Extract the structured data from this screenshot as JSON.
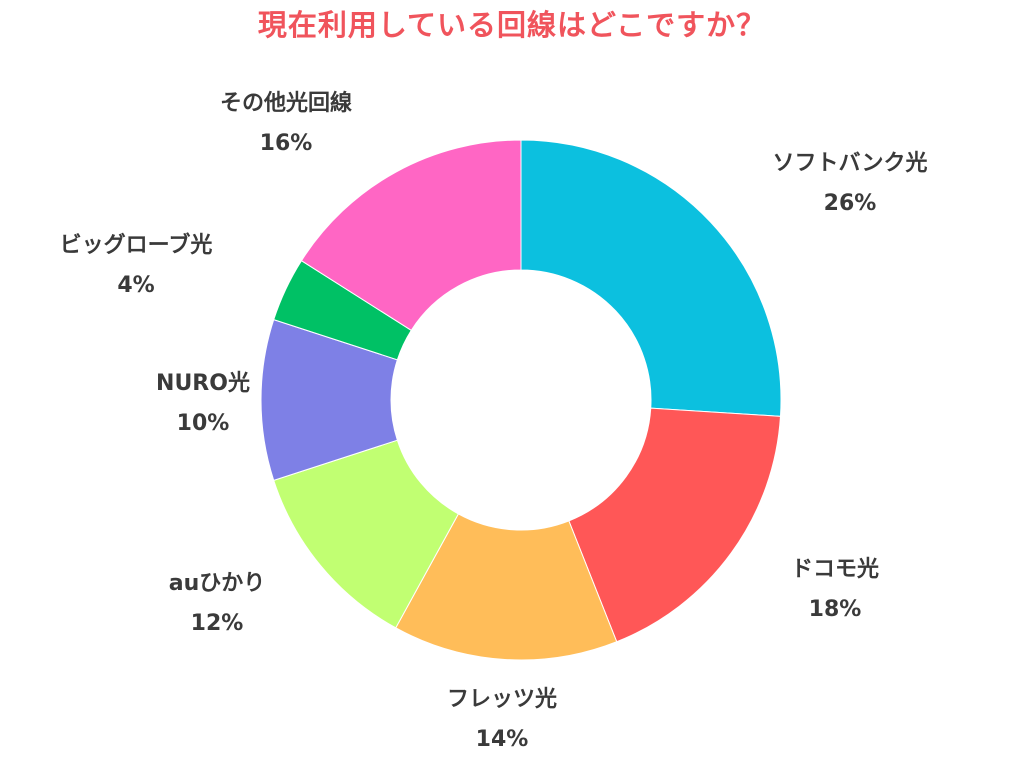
{
  "title": "現在利用している回線はどこですか？",
  "colors": {
    "title": "#f0545c",
    "label": "#3a3a3a"
  },
  "chart_data": {
    "type": "pie",
    "donut": true,
    "title": "現在利用している回線はどこですか？",
    "legend": "none (labels placed beside slices)",
    "start": "top, clockwise",
    "slices": [
      {
        "label": "ソフトバンク光",
        "value": 26,
        "value_label": "26%",
        "color": "#0cc0df"
      },
      {
        "label": "ドコモ光",
        "value": 18,
        "value_label": "18%",
        "color": "#ff5757"
      },
      {
        "label": "フレッツ光",
        "value": 14,
        "value_label": "14%",
        "color": "#ffbd59"
      },
      {
        "label": "auひかり",
        "value": 12,
        "value_label": "12%",
        "color": "#c1ff72"
      },
      {
        "label": "NURO光",
        "value": 10,
        "value_label": "10%",
        "color": "#7e80e6"
      },
      {
        "label": "ビッグローブ光",
        "value": 4,
        "value_label": "4%",
        "color": "#00c165"
      },
      {
        "label": "その他光回線",
        "value": 16,
        "value_label": "16%",
        "color": "#ff66c4"
      }
    ]
  }
}
